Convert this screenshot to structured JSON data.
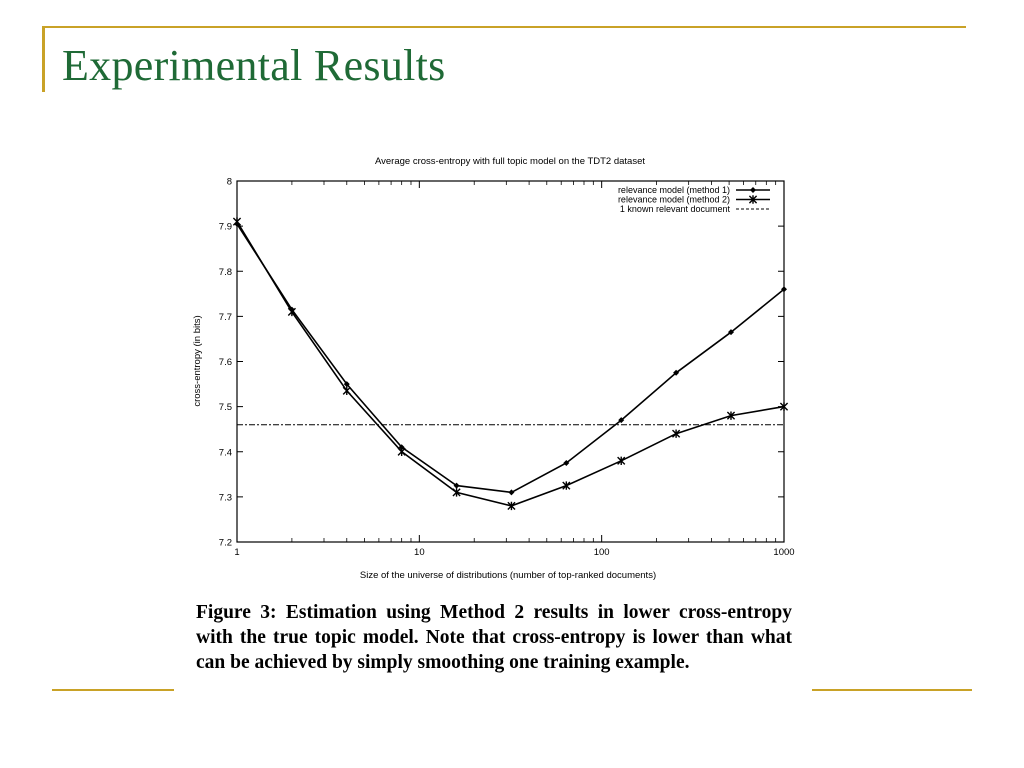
{
  "slide": {
    "title": "Experimental Results",
    "accent_color": "#c9a227",
    "title_color": "#1f6a36"
  },
  "caption": "Figure 3: Estimation using Method 2 results in lower cross-entropy with the true topic model. Note that cross-entropy is lower than what can be achieved by simply smoothing one training example.",
  "chart_data": {
    "type": "line",
    "title": "Average cross-entropy with full topic model on the TDT2 dataset",
    "xlabel": "Size of the universe of distributions (number of top-ranked documents)",
    "ylabel": "cross-entropy (in bits)",
    "x_scale": "log",
    "xlim": [
      1,
      1000
    ],
    "ylim": [
      7.2,
      8
    ],
    "x_ticks": [
      1,
      10,
      100,
      1000
    ],
    "x_tick_labels": [
      "1",
      "10",
      "100",
      "1000"
    ],
    "y_ticks": [
      7.2,
      7.3,
      7.4,
      7.5,
      7.6,
      7.7,
      7.8,
      7.9,
      8
    ],
    "y_tick_labels": [
      "7.2",
      "7.3",
      "7.4",
      "7.5",
      "7.6",
      "7.7",
      "7.8",
      "7.9",
      "8"
    ],
    "grid": false,
    "legend_position": "top-right",
    "series": [
      {
        "name": "relevance model (method 1)",
        "marker": "diamond",
        "x": [
          1,
          2,
          4,
          8,
          16,
          32,
          64,
          128,
          256,
          512,
          1000
        ],
        "y": [
          7.905,
          7.715,
          7.55,
          7.41,
          7.325,
          7.31,
          7.375,
          7.47,
          7.575,
          7.665,
          7.76
        ]
      },
      {
        "name": "relevance model (method 2)",
        "marker": "star",
        "x": [
          1,
          2,
          4,
          8,
          16,
          32,
          64,
          128,
          256,
          512,
          1000
        ],
        "y": [
          7.91,
          7.71,
          7.535,
          7.4,
          7.31,
          7.28,
          7.325,
          7.38,
          7.44,
          7.48,
          7.5
        ]
      },
      {
        "name": "1 known relevant document",
        "marker": "none",
        "style": "dashed",
        "x": [
          1,
          1000
        ],
        "y": [
          7.46,
          7.46
        ]
      }
    ]
  }
}
